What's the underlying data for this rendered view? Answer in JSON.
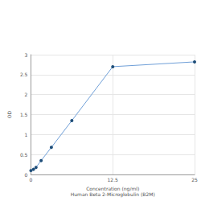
{
  "chart_data": {
    "type": "line",
    "x_label": "Concentration (ng/ml)\nHuman Beta 2-Microglobulin (B2M)",
    "y_label": "OD",
    "x": [
      0,
      0.39,
      0.78,
      1.56,
      3.125,
      6.25,
      12.5,
      25
    ],
    "values": [
      0.1,
      0.13,
      0.18,
      0.35,
      0.68,
      1.35,
      2.7,
      2.82
    ],
    "color": "#6f9fd8",
    "marker": "circle",
    "xlim": [
      0,
      25
    ],
    "xticks": [
      0,
      12.5,
      25
    ],
    "ylim": [
      0,
      3
    ],
    "yticks": [
      0,
      0.5,
      1,
      1.5,
      2,
      2.5,
      3
    ],
    "grid": true
  }
}
